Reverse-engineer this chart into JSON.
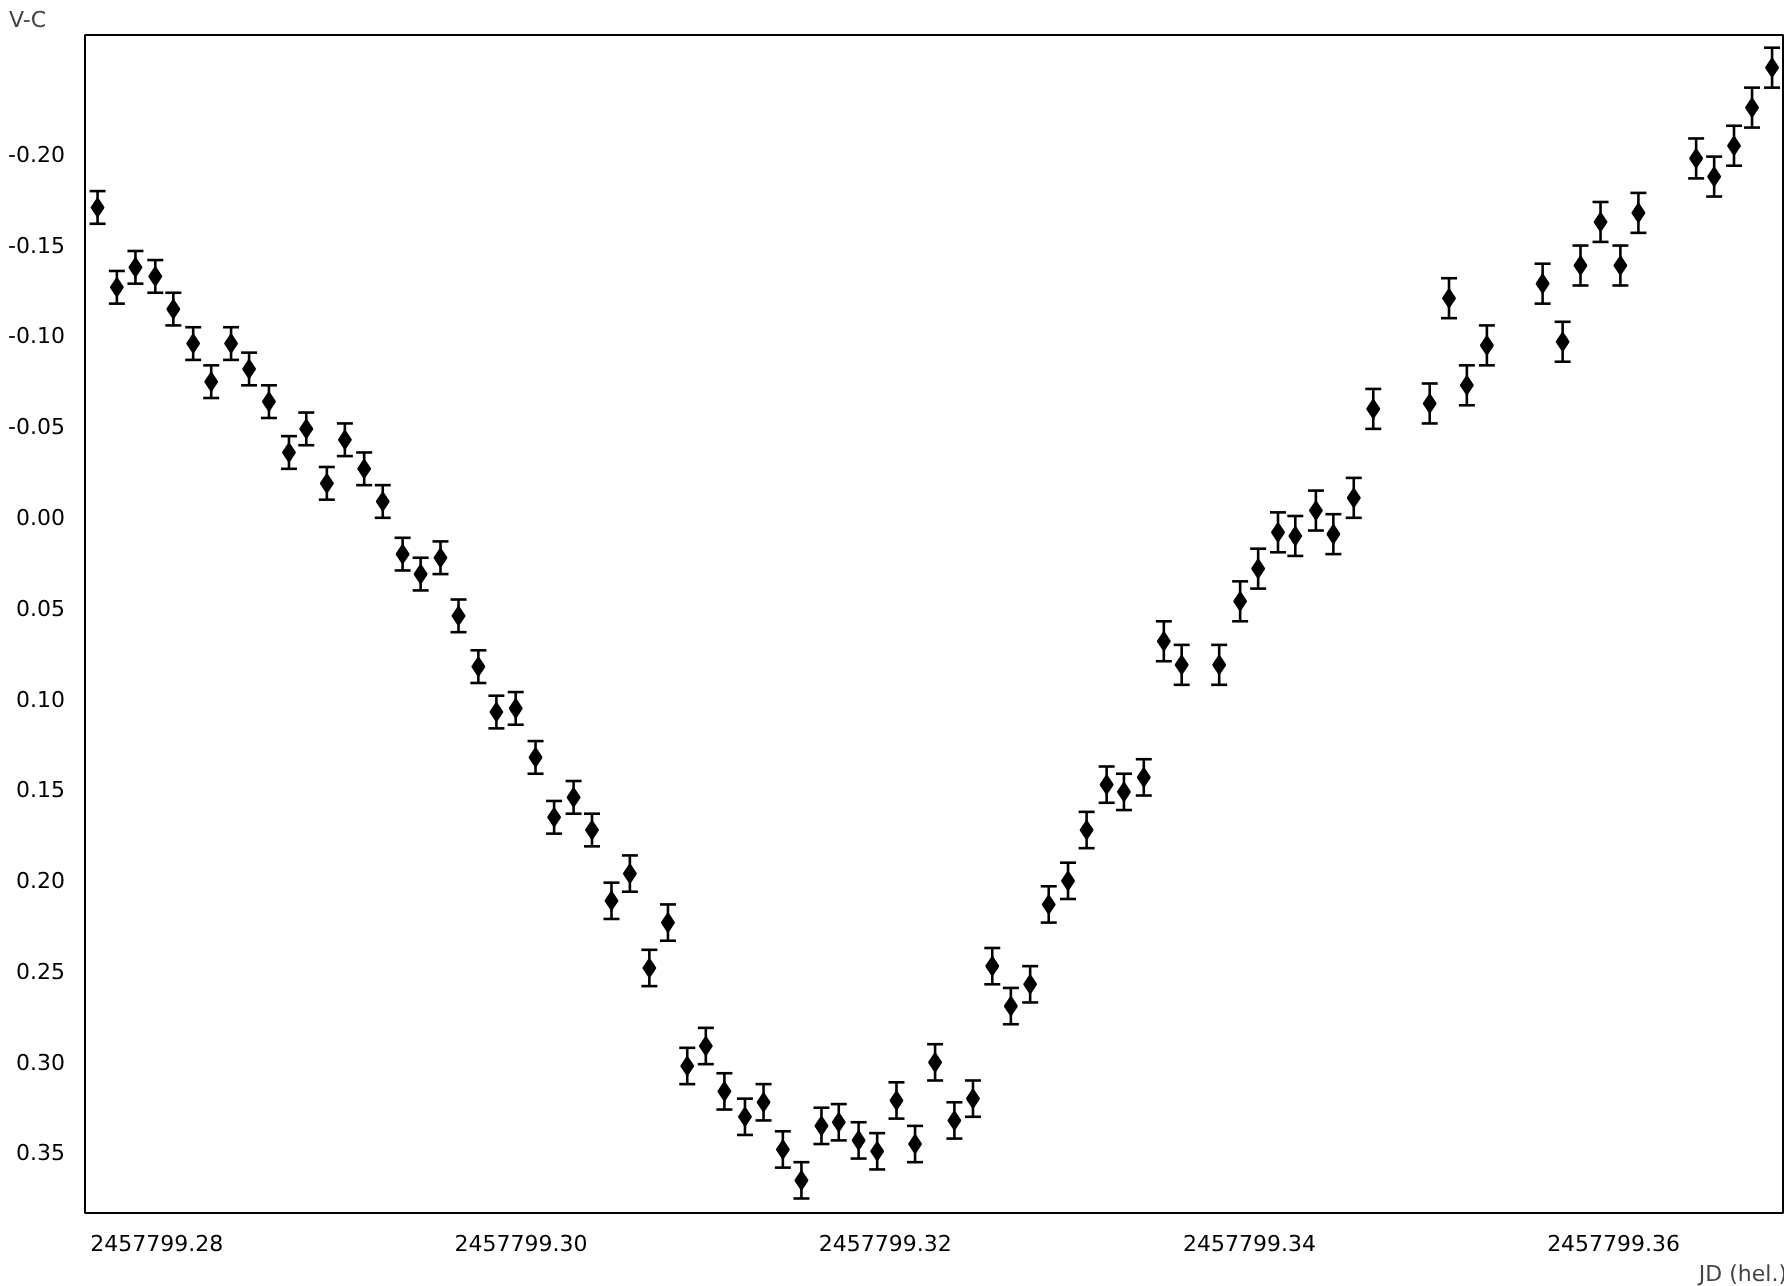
{
  "chart_data": {
    "type": "scatter",
    "xlabel": "JD (hel.)",
    "ylabel": "V-C",
    "color": "#000000",
    "marker": "diamond",
    "xlim": [
      2457799.27606,
      2457799.3693
    ],
    "ylim": [
      0.384,
      -0.265
    ],
    "xticks": [
      {
        "value": 2457799.28,
        "label": "2457799.28"
      },
      {
        "value": 2457799.3,
        "label": "2457799.30"
      },
      {
        "value": 2457799.32,
        "label": "2457799.32"
      },
      {
        "value": 2457799.34,
        "label": "2457799.34"
      },
      {
        "value": 2457799.36,
        "label": "2457799.36"
      }
    ],
    "yticks": [
      {
        "value": -0.2,
        "label": "-0.20"
      },
      {
        "value": -0.15,
        "label": "-0.15"
      },
      {
        "value": -0.1,
        "label": "-0.10"
      },
      {
        "value": -0.05,
        "label": "-0.05"
      },
      {
        "value": 0.0,
        "label": "0.00"
      },
      {
        "value": 0.05,
        "label": "0.05"
      },
      {
        "value": 0.1,
        "label": "0.10"
      },
      {
        "value": 0.15,
        "label": "0.15"
      },
      {
        "value": 0.2,
        "label": "0.20"
      },
      {
        "value": 0.25,
        "label": "0.25"
      },
      {
        "value": 0.3,
        "label": "0.30"
      },
      {
        "value": 0.35,
        "label": "0.35"
      }
    ],
    "x": [
      2457799.27675,
      2457799.27781,
      2457799.27883,
      2457799.27992,
      2457799.28091,
      2457799.282,
      2457799.28299,
      2457799.28408,
      2457799.28507,
      2457799.28616,
      2457799.28726,
      2457799.28821,
      2457799.28934,
      2457799.29033,
      2457799.29139,
      2457799.29241,
      2457799.2935,
      2457799.29449,
      2457799.29558,
      2457799.29657,
      2457799.29766,
      2457799.29865,
      2457799.29971,
      2457799.3008,
      2457799.30182,
      2457799.30289,
      2457799.3039,
      2457799.30497,
      2457799.30598,
      2457799.30705,
      2457799.30807,
      2457799.30913,
      2457799.31015,
      2457799.31117,
      2457799.3123,
      2457799.31332,
      2457799.31438,
      2457799.3154,
      2457799.3165,
      2457799.31745,
      2457799.31854,
      2457799.31956,
      2457799.32062,
      2457799.32164,
      2457799.32274,
      2457799.3238,
      2457799.32482,
      2457799.32588,
      2457799.3269,
      2457799.32796,
      2457799.32898,
      2457799.33004,
      2457799.33106,
      2457799.33216,
      2457799.33311,
      2457799.3342,
      2457799.3353,
      2457799.33628,
      2457799.33834,
      2457799.33949,
      2457799.34048,
      2457799.34157,
      2457799.34252,
      2457799.34365,
      2457799.34461,
      2457799.34573,
      2457799.3468,
      2457799.3499,
      2457799.35096,
      2457799.35194,
      2457799.35304,
      2457799.3561,
      2457799.3572,
      2457799.35818,
      2457799.35928,
      2457799.36037,
      2457799.36136,
      2457799.36453,
      2457799.36552,
      2457799.36661,
      2457799.3676,
      2457799.3687
    ],
    "values": [
      -0.17,
      -0.126,
      -0.137,
      -0.132,
      -0.114,
      -0.095,
      -0.074,
      -0.095,
      -0.081,
      -0.063,
      -0.035,
      -0.048,
      -0.018,
      -0.042,
      -0.026,
      -0.008,
      0.021,
      0.032,
      0.023,
      0.055,
      0.083,
      0.108,
      0.106,
      0.133,
      0.166,
      0.155,
      0.173,
      0.212,
      0.197,
      0.249,
      0.224,
      0.303,
      0.292,
      0.317,
      0.331,
      0.323,
      0.349,
      0.366,
      0.336,
      0.334,
      0.344,
      0.35,
      0.322,
      0.346,
      0.301,
      0.333,
      0.321,
      0.248,
      0.27,
      0.258,
      0.214,
      0.201,
      0.173,
      0.148,
      0.152,
      0.144,
      0.069,
      0.082,
      0.082,
      0.047,
      0.029,
      0.009,
      0.011,
      -0.003,
      0.01,
      -0.01,
      -0.059,
      -0.062,
      -0.12,
      -0.072,
      -0.094,
      -0.128,
      -0.096,
      -0.138,
      -0.162,
      -0.138,
      -0.167,
      -0.197,
      -0.187,
      -0.204,
      -0.225,
      -0.247
    ],
    "errors": [
      0.009,
      0.009,
      0.009,
      0.009,
      0.009,
      0.009,
      0.009,
      0.009,
      0.009,
      0.009,
      0.009,
      0.009,
      0.009,
      0.009,
      0.009,
      0.009,
      0.009,
      0.009,
      0.009,
      0.009,
      0.009,
      0.009,
      0.009,
      0.009,
      0.009,
      0.009,
      0.009,
      0.01,
      0.01,
      0.01,
      0.01,
      0.01,
      0.01,
      0.01,
      0.01,
      0.01,
      0.01,
      0.01,
      0.01,
      0.01,
      0.01,
      0.01,
      0.01,
      0.01,
      0.01,
      0.01,
      0.01,
      0.01,
      0.01,
      0.01,
      0.01,
      0.01,
      0.01,
      0.01,
      0.01,
      0.01,
      0.011,
      0.011,
      0.011,
      0.011,
      0.011,
      0.011,
      0.011,
      0.011,
      0.011,
      0.011,
      0.011,
      0.011,
      0.011,
      0.011,
      0.011,
      0.011,
      0.011,
      0.011,
      0.011,
      0.011,
      0.011,
      0.011,
      0.011,
      0.011,
      0.011,
      0.011
    ]
  }
}
